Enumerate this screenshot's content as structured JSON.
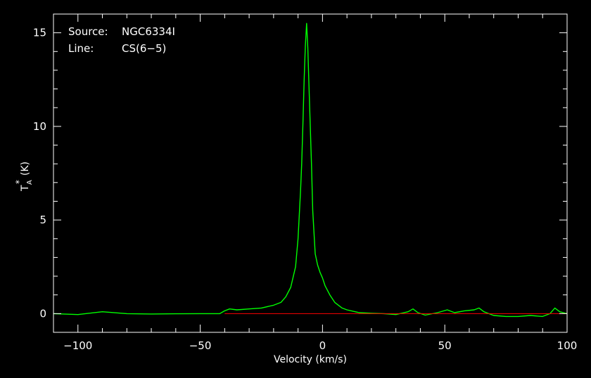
{
  "annotations": {
    "source_label": "Source:",
    "source_value": "NGC6334I",
    "line_label": "Line:",
    "line_value": "CS(6−5)"
  },
  "chart_data": {
    "type": "line",
    "title": "",
    "xlabel": "Velocity (km/s)",
    "ylabel_main": "T",
    "ylabel_sub": "A",
    "ylabel_sup": "*",
    "ylabel_unit": "(K)",
    "xlim": [
      -110,
      100
    ],
    "ylim": [
      -1,
      16
    ],
    "xticks": [
      -100,
      -50,
      0,
      50,
      100
    ],
    "xtick_labels": [
      "−100",
      "−50",
      "0",
      "50",
      "100"
    ],
    "yticks": [
      0,
      5,
      10,
      15
    ],
    "ytick_labels": [
      "0",
      "5",
      "10",
      "15"
    ],
    "grid": false,
    "background": "#000000",
    "axis_color": "#ffffff",
    "series": [
      {
        "color": "#00ff00",
        "x": [
          -110,
          -100,
          -90,
          -80,
          -70,
          -60,
          -50,
          -42,
          -40,
          -38,
          -35,
          -30,
          -25,
          -20,
          -17,
          -15,
          -13,
          -11,
          -10,
          -9,
          -8.5,
          -8,
          -7.5,
          -7,
          -6.5,
          -6,
          -5.5,
          -5,
          -4.5,
          -4,
          -3,
          -2,
          -1,
          0,
          1,
          3,
          5,
          8,
          10,
          15,
          20,
          25,
          30,
          35,
          37,
          39,
          42,
          47,
          51,
          54,
          58,
          62,
          64,
          66,
          70,
          75,
          80,
          85,
          90,
          93,
          95,
          97,
          100
        ],
        "y": [
          0.0,
          -0.05,
          0.1,
          0.0,
          -0.02,
          -0.01,
          0.0,
          0.0,
          0.15,
          0.25,
          0.2,
          0.25,
          0.3,
          0.45,
          0.6,
          0.9,
          1.4,
          2.5,
          4.0,
          6.5,
          8.0,
          10.2,
          12.5,
          14.3,
          15.5,
          14.2,
          12.0,
          10.0,
          8.0,
          5.5,
          3.2,
          2.6,
          2.2,
          1.9,
          1.5,
          1.0,
          0.6,
          0.3,
          0.2,
          0.05,
          0.02,
          0.0,
          -0.05,
          0.1,
          0.25,
          0.05,
          -0.08,
          0.05,
          0.2,
          0.05,
          0.15,
          0.2,
          0.3,
          0.1,
          -0.1,
          -0.15,
          -0.15,
          -0.1,
          -0.15,
          0.0,
          0.3,
          0.1,
          0.0
        ]
      },
      {
        "color": "#ff0000",
        "x": [
          -40,
          100
        ],
        "y": [
          0,
          0
        ]
      }
    ]
  }
}
